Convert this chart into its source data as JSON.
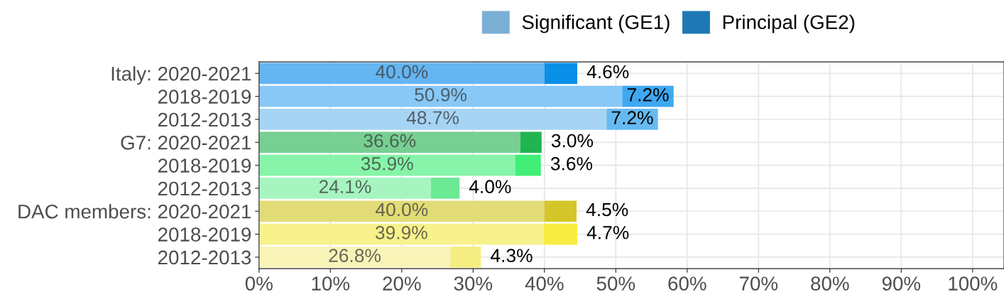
{
  "chart_data": {
    "type": "bar",
    "orientation": "horizontal",
    "stacked": true,
    "categories": [
      "Italy: 2020-2021",
      "2018-2019",
      "2012-2013",
      "G7: 2020-2021",
      "2018-2019",
      "2012-2013",
      "DAC members: 2020-2021",
      "2018-2019",
      "2012-2013"
    ],
    "series": [
      {
        "name": "Significant (GE1)",
        "color": "#7bafd4",
        "colors": [
          "#64b5f0",
          "#87c8f7",
          "#a6d4f5",
          "#77cf92",
          "#87f4a9",
          "#a6f5c0",
          "#e2dc78",
          "#f8f28c",
          "#f8f4b8"
        ],
        "values": [
          40.0,
          50.9,
          48.7,
          36.6,
          35.9,
          24.1,
          40.0,
          39.9,
          26.8
        ],
        "value_labels": [
          "40.0%",
          "50.9%",
          "48.7%",
          "36.6%",
          "35.9%",
          "24.1%",
          "40.0%",
          "39.9%",
          "26.8%"
        ]
      },
      {
        "name": "Principal (GE2)",
        "color": "#1f78b4",
        "colors": [
          "#0a8fe8",
          "#3fa8f0",
          "#66baf2",
          "#21b453",
          "#41ee77",
          "#6ce995",
          "#d4c628",
          "#f8ec42",
          "#f5ee82"
        ],
        "values": [
          4.6,
          7.2,
          7.2,
          3.0,
          3.6,
          4.0,
          4.5,
          4.7,
          4.3
        ],
        "value_labels": [
          "4.6%",
          "7.2%",
          "7.2%",
          "3.0%",
          "3.6%",
          "4.0%",
          "4.5%",
          "4.7%",
          "4.3%"
        ]
      }
    ],
    "xlim": [
      0,
      104.4
    ],
    "xticks": [
      {
        "value": 0,
        "label": "0%"
      },
      {
        "value": 10,
        "label": "10%"
      },
      {
        "value": 20,
        "label": "20%"
      },
      {
        "value": 30,
        "label": "30%"
      },
      {
        "value": 40,
        "label": "40%"
      },
      {
        "value": 50,
        "label": "50%"
      },
      {
        "value": 60,
        "label": "60%"
      },
      {
        "value": 70,
        "label": "70%"
      },
      {
        "value": 80,
        "label": "80%"
      },
      {
        "value": 90,
        "label": "90%"
      },
      {
        "value": 100,
        "label": "100%"
      }
    ],
    "grid": true,
    "legend": "top"
  }
}
